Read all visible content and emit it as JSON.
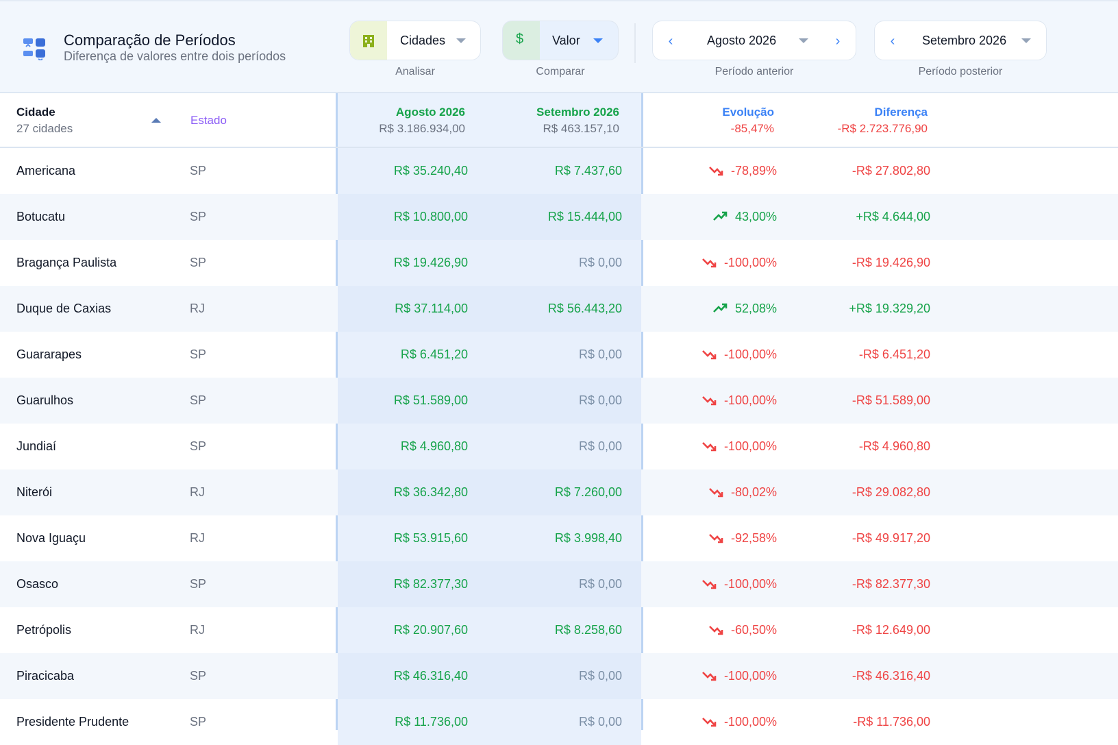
{
  "header": {
    "title": "Comparação de Períodos",
    "subtitle": "Diferença de valores entre dois períodos"
  },
  "controls": {
    "analyze": {
      "value": "Cidades",
      "caption": "Analisar"
    },
    "compare": {
      "value": "Valor",
      "caption": "Comparar"
    },
    "period_prev": {
      "value": "Agosto 2026",
      "caption": "Período anterior"
    },
    "period_next": {
      "value": "Setembro 2026",
      "caption": "Período posterior"
    }
  },
  "table": {
    "headers": {
      "city": "Cidade",
      "city_count": "27 cidades",
      "state": "Estado",
      "prev": "Agosto 2026",
      "prev_total": "R$ 3.186.934,00",
      "next": "Setembro 2026",
      "next_total": "R$ 463.157,10",
      "evo": "Evolução",
      "evo_total": "-85,47%",
      "diff": "Diferença",
      "diff_total": "-R$ 2.723.776,90"
    },
    "rows": [
      {
        "city": "Americana",
        "state": "SP",
        "prev": "R$ 35.240,40",
        "next": "R$ 7.437,60",
        "evo": "-78,89%",
        "diff": "-R$ 27.802,80",
        "trend": "down"
      },
      {
        "city": "Botucatu",
        "state": "SP",
        "prev": "R$ 10.800,00",
        "next": "R$ 15.444,00",
        "evo": "43,00%",
        "diff": "+R$ 4.644,00",
        "trend": "up"
      },
      {
        "city": "Bragança Paulista",
        "state": "SP",
        "prev": "R$ 19.426,90",
        "next": "R$ 0,00",
        "evo": "-100,00%",
        "diff": "-R$ 19.426,90",
        "trend": "down"
      },
      {
        "city": "Duque de Caxias",
        "state": "RJ",
        "prev": "R$ 37.114,00",
        "next": "R$ 56.443,20",
        "evo": "52,08%",
        "diff": "+R$ 19.329,20",
        "trend": "up"
      },
      {
        "city": "Guararapes",
        "state": "SP",
        "prev": "R$ 6.451,20",
        "next": "R$ 0,00",
        "evo": "-100,00%",
        "diff": "-R$ 6.451,20",
        "trend": "down"
      },
      {
        "city": "Guarulhos",
        "state": "SP",
        "prev": "R$ 51.589,00",
        "next": "R$ 0,00",
        "evo": "-100,00%",
        "diff": "-R$ 51.589,00",
        "trend": "down"
      },
      {
        "city": "Jundiaí",
        "state": "SP",
        "prev": "R$ 4.960,80",
        "next": "R$ 0,00",
        "evo": "-100,00%",
        "diff": "-R$ 4.960,80",
        "trend": "down"
      },
      {
        "city": "Niterói",
        "state": "RJ",
        "prev": "R$ 36.342,80",
        "next": "R$ 7.260,00",
        "evo": "-80,02%",
        "diff": "-R$ 29.082,80",
        "trend": "down"
      },
      {
        "city": "Nova Iguaçu",
        "state": "RJ",
        "prev": "R$ 53.915,60",
        "next": "R$ 3.998,40",
        "evo": "-92,58%",
        "diff": "-R$ 49.917,20",
        "trend": "down"
      },
      {
        "city": "Osasco",
        "state": "SP",
        "prev": "R$ 82.377,30",
        "next": "R$ 0,00",
        "evo": "-100,00%",
        "diff": "-R$ 82.377,30",
        "trend": "down"
      },
      {
        "city": "Petrópolis",
        "state": "RJ",
        "prev": "R$ 20.907,60",
        "next": "R$ 8.258,60",
        "evo": "-60,50%",
        "diff": "-R$ 12.649,00",
        "trend": "down"
      },
      {
        "city": "Piracicaba",
        "state": "SP",
        "prev": "R$ 46.316,40",
        "next": "R$ 0,00",
        "evo": "-100,00%",
        "diff": "-R$ 46.316,40",
        "trend": "down"
      },
      {
        "city": "Presidente Prudente",
        "state": "SP",
        "prev": "R$ 11.736,00",
        "next": "R$ 0,00",
        "evo": "-100,00%",
        "diff": "-R$ 11.736,00",
        "trend": "down"
      }
    ]
  },
  "colors": {
    "accent": "#3b82f6",
    "positive": "#16a34a",
    "negative": "#ef4444",
    "state": "#8b5cf6"
  }
}
